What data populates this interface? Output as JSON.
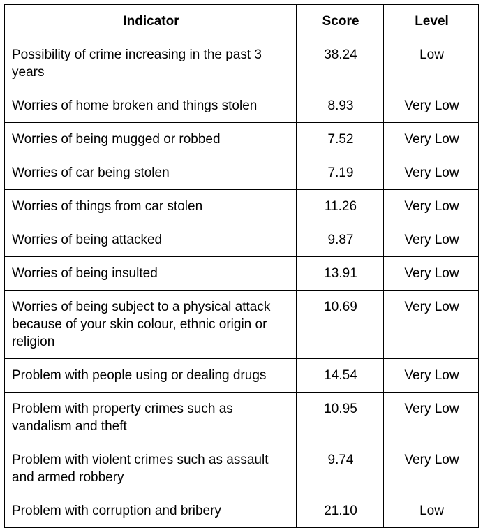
{
  "table": {
    "headers": {
      "indicator": "Indicator",
      "score": "Score",
      "level": "Level"
    },
    "rows": [
      {
        "indicator": "Possibility of crime increasing in the past 3 years",
        "score": "38.24",
        "level": "Low"
      },
      {
        "indicator": "Worries of home broken and things stolen",
        "score": "8.93",
        "level": "Very Low"
      },
      {
        "indicator": "Worries of being mugged or robbed",
        "score": "7.52",
        "level": "Very Low"
      },
      {
        "indicator": "Worries of car being stolen",
        "score": "7.19",
        "level": "Very Low"
      },
      {
        "indicator": "Worries of things from car stolen",
        "score": "11.26",
        "level": "Very Low"
      },
      {
        "indicator": "Worries of being attacked",
        "score": "9.87",
        "level": "Very Low"
      },
      {
        "indicator": "Worries of being insulted",
        "score": "13.91",
        "level": "Very Low"
      },
      {
        "indicator": "Worries of being subject to a physical attack because of your skin colour, ethnic origin or religion",
        "score": "10.69",
        "level": "Very Low"
      },
      {
        "indicator": "Problem with people using or dealing drugs",
        "score": "14.54",
        "level": "Very Low"
      },
      {
        "indicator": "Problem with property crimes such as vandalism and theft",
        "score": "10.95",
        "level": "Very Low"
      },
      {
        "indicator": "Problem with violent crimes such as assault and armed robbery",
        "score": "9.74",
        "level": "Very Low"
      },
      {
        "indicator": "Problem with corruption and bribery",
        "score": "21.10",
        "level": "Low"
      }
    ]
  }
}
